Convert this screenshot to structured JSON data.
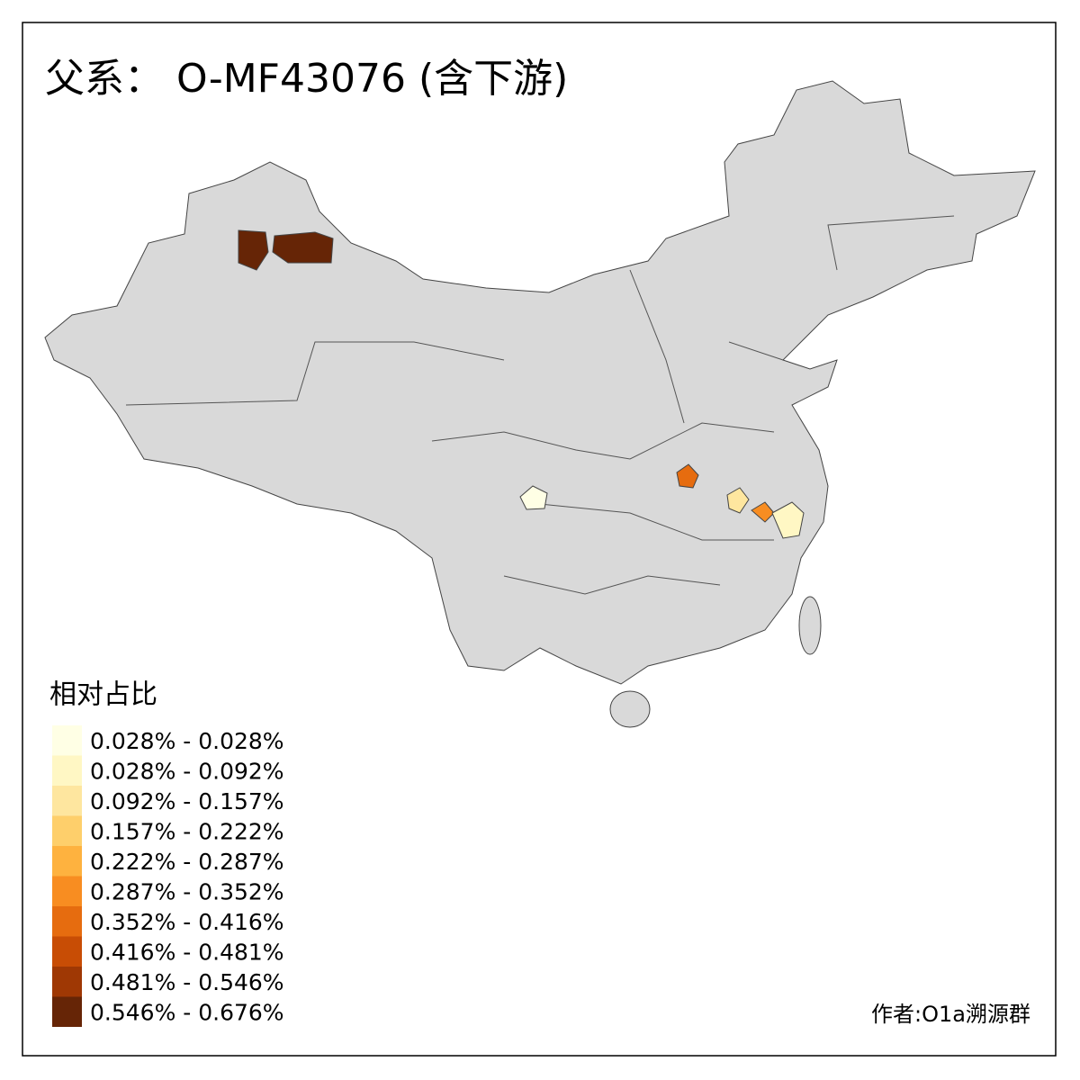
{
  "title": "父系： O-MF43076 (含下游)",
  "legend": {
    "title": "相对占比",
    "items": [
      {
        "label": "0.028% - 0.028%",
        "color": "#ffffe5"
      },
      {
        "label": "0.028% - 0.092%",
        "color": "#fff7c4"
      },
      {
        "label": "0.092% - 0.157%",
        "color": "#fee69f"
      },
      {
        "label": "0.157% - 0.222%",
        "color": "#fecf6b"
      },
      {
        "label": "0.222% - 0.287%",
        "color": "#feb23f"
      },
      {
        "label": "0.287% - 0.352%",
        "color": "#f88d21"
      },
      {
        "label": "0.352% - 0.416%",
        "color": "#e66c0f"
      },
      {
        "label": "0.416% - 0.481%",
        "color": "#c84d05"
      },
      {
        "label": "0.481% - 0.546%",
        "color": "#9f3804"
      },
      {
        "label": "0.546% - 0.676%",
        "color": "#662506"
      }
    ]
  },
  "credit": "作者:O1a溯源群"
}
